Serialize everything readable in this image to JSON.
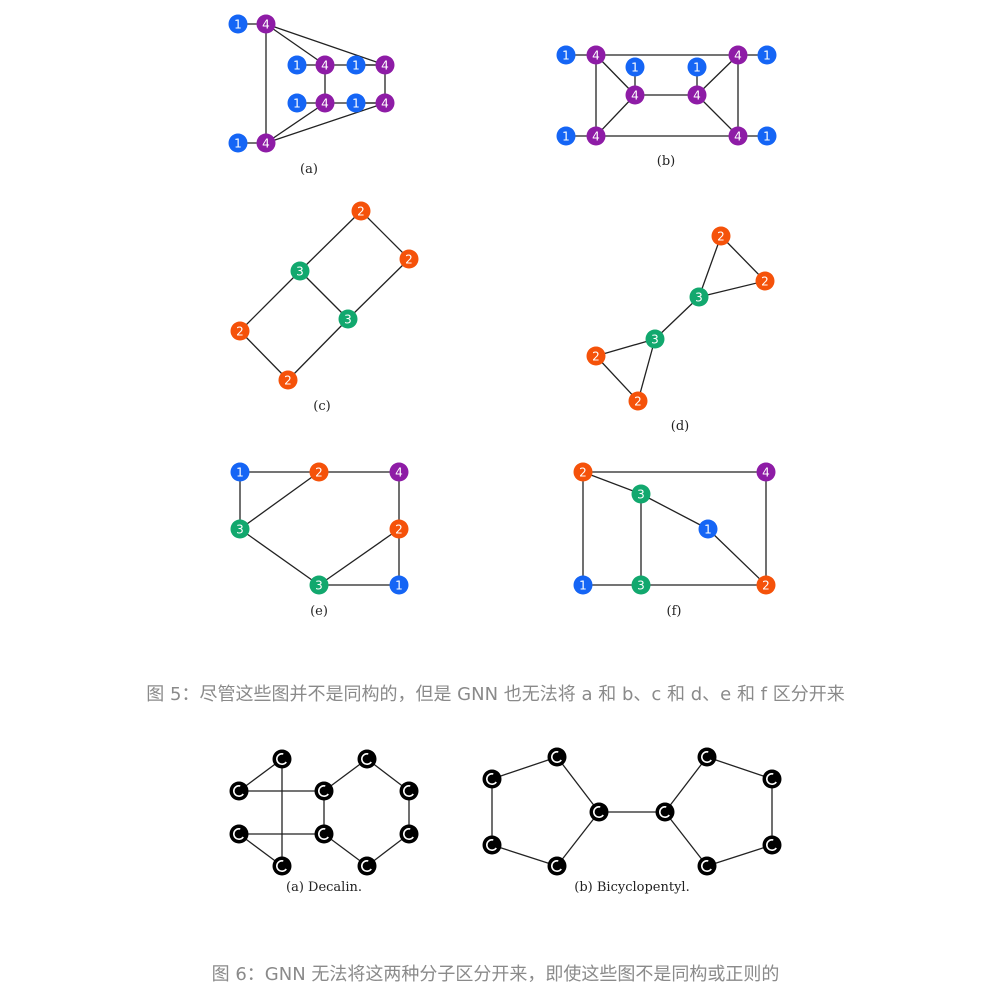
{
  "colors": {
    "1": "#1565f5",
    "2": "#f5520a",
    "3": "#12a86e",
    "4": "#8e1ca6",
    "C": "#000000"
  },
  "figure5": {
    "caption": "图 5：尽管这些图并不是同构的，但是 GNN 也无法将 a 和 b、c 和 d、e 和 f 区分开来",
    "graphs": [
      {
        "id": "a",
        "label": "(a)",
        "nodes": [
          {
            "id": "a1",
            "v": "1"
          },
          {
            "id": "a2",
            "v": "4"
          },
          {
            "id": "a3",
            "v": "1"
          },
          {
            "id": "a4",
            "v": "4"
          },
          {
            "id": "a5",
            "v": "1"
          },
          {
            "id": "a6",
            "v": "4"
          },
          {
            "id": "a7",
            "v": "1"
          },
          {
            "id": "a8",
            "v": "4"
          },
          {
            "id": "a9",
            "v": "1"
          },
          {
            "id": "a10",
            "v": "4"
          },
          {
            "id": "a11",
            "v": "1"
          },
          {
            "id": "a12",
            "v": "4"
          }
        ],
        "edges": [
          [
            "a1",
            "a2"
          ],
          [
            "a3",
            "a4"
          ],
          [
            "a5",
            "a6"
          ],
          [
            "a7",
            "a8"
          ],
          [
            "a9",
            "a10"
          ],
          [
            "a11",
            "a12"
          ],
          [
            "a2",
            "a4"
          ],
          [
            "a2",
            "a6"
          ],
          [
            "a2",
            "a12"
          ],
          [
            "a4",
            "a6"
          ],
          [
            "a4",
            "a10"
          ],
          [
            "a6",
            "a8"
          ],
          [
            "a8",
            "a10"
          ],
          [
            "a8",
            "a12"
          ],
          [
            "a10",
            "a12"
          ]
        ]
      },
      {
        "id": "b",
        "label": "(b)",
        "nodes": [
          {
            "id": "b1",
            "v": "1"
          },
          {
            "id": "b2",
            "v": "4"
          },
          {
            "id": "b3",
            "v": "1"
          },
          {
            "id": "b4",
            "v": "4"
          },
          {
            "id": "b5",
            "v": "1"
          },
          {
            "id": "b6",
            "v": "4"
          },
          {
            "id": "b7",
            "v": "1"
          },
          {
            "id": "b8",
            "v": "4"
          },
          {
            "id": "b9",
            "v": "1"
          },
          {
            "id": "b10",
            "v": "4"
          },
          {
            "id": "b11",
            "v": "1"
          },
          {
            "id": "b12",
            "v": "4"
          }
        ],
        "edges": [
          [
            "b1",
            "b2"
          ],
          [
            "b3",
            "b4"
          ],
          [
            "b5",
            "b6"
          ],
          [
            "b7",
            "b8"
          ],
          [
            "b9",
            "b10"
          ],
          [
            "b11",
            "b12"
          ],
          [
            "b2",
            "b8"
          ],
          [
            "b2",
            "b4"
          ],
          [
            "b2",
            "b10"
          ],
          [
            "b8",
            "b12"
          ],
          [
            "b8",
            "b6"
          ],
          [
            "b10",
            "b4"
          ],
          [
            "b10",
            "b12"
          ],
          [
            "b12",
            "b6"
          ],
          [
            "b4",
            "b6"
          ]
        ]
      },
      {
        "id": "c",
        "label": "(c)",
        "nodes": [
          {
            "id": "c1",
            "v": "2"
          },
          {
            "id": "c2",
            "v": "2"
          },
          {
            "id": "c3",
            "v": "3"
          },
          {
            "id": "c4",
            "v": "3"
          },
          {
            "id": "c5",
            "v": "2"
          },
          {
            "id": "c6",
            "v": "2"
          }
        ],
        "edges": [
          [
            "c1",
            "c2"
          ],
          [
            "c1",
            "c3"
          ],
          [
            "c2",
            "c4"
          ],
          [
            "c3",
            "c4"
          ],
          [
            "c3",
            "c5"
          ],
          [
            "c4",
            "c6"
          ],
          [
            "c5",
            "c6"
          ]
        ]
      },
      {
        "id": "d",
        "label": "(d)",
        "nodes": [
          {
            "id": "d1",
            "v": "2"
          },
          {
            "id": "d2",
            "v": "2"
          },
          {
            "id": "d3",
            "v": "3"
          },
          {
            "id": "d4",
            "v": "3"
          },
          {
            "id": "d5",
            "v": "2"
          },
          {
            "id": "d6",
            "v": "2"
          }
        ],
        "edges": [
          [
            "d1",
            "d2"
          ],
          [
            "d1",
            "d3"
          ],
          [
            "d2",
            "d3"
          ],
          [
            "d3",
            "d4"
          ],
          [
            "d4",
            "d5"
          ],
          [
            "d4",
            "d6"
          ],
          [
            "d5",
            "d6"
          ]
        ]
      },
      {
        "id": "e",
        "label": "(e)",
        "nodes": [
          {
            "id": "e1",
            "v": "1"
          },
          {
            "id": "e2",
            "v": "2"
          },
          {
            "id": "e3",
            "v": "4"
          },
          {
            "id": "e4",
            "v": "3"
          },
          {
            "id": "e5",
            "v": "2"
          },
          {
            "id": "e6",
            "v": "3"
          },
          {
            "id": "e7",
            "v": "1"
          }
        ],
        "edges": [
          [
            "e1",
            "e2"
          ],
          [
            "e2",
            "e3"
          ],
          [
            "e1",
            "e4"
          ],
          [
            "e2",
            "e4"
          ],
          [
            "e3",
            "e5"
          ],
          [
            "e4",
            "e6"
          ],
          [
            "e5",
            "e6"
          ],
          [
            "e5",
            "e7"
          ],
          [
            "e6",
            "e7"
          ]
        ]
      },
      {
        "id": "f",
        "label": "(f)",
        "nodes": [
          {
            "id": "f1",
            "v": "2"
          },
          {
            "id": "f2",
            "v": "4"
          },
          {
            "id": "f3",
            "v": "3"
          },
          {
            "id": "f4",
            "v": "1"
          },
          {
            "id": "f5",
            "v": "1"
          },
          {
            "id": "f6",
            "v": "3"
          },
          {
            "id": "f7",
            "v": "2"
          }
        ],
        "edges": [
          [
            "f1",
            "f2"
          ],
          [
            "f1",
            "f3"
          ],
          [
            "f1",
            "f5"
          ],
          [
            "f3",
            "f4"
          ],
          [
            "f3",
            "f6"
          ],
          [
            "f4",
            "f7"
          ],
          [
            "f2",
            "f7"
          ],
          [
            "f5",
            "f6"
          ],
          [
            "f6",
            "f7"
          ]
        ]
      }
    ]
  },
  "figure6": {
    "caption": "图 6：GNN 无法将这两种分子区分开来，即使这些图不是同构或正则的",
    "molecules": [
      {
        "id": "decalin",
        "label": "(a) Decalin.",
        "atom": "C",
        "nodes": [
          "m1",
          "m2",
          "m3",
          "m4",
          "m5",
          "m6",
          "m7",
          "m8",
          "m9",
          "m10"
        ],
        "edges": [
          [
            "m1",
            "m2"
          ],
          [
            "m2",
            "m3"
          ],
          [
            "m3",
            "m4"
          ],
          [
            "m4",
            "m5"
          ],
          [
            "m5",
            "m6"
          ],
          [
            "m6",
            "m1"
          ],
          [
            "m2",
            "m7"
          ],
          [
            "m7",
            "m8"
          ],
          [
            "m8",
            "m9"
          ],
          [
            "m9",
            "m10"
          ],
          [
            "m10",
            "m3"
          ]
        ]
      },
      {
        "id": "bicyclopentyl",
        "label": "(b) Bicyclopentyl.",
        "atom": "C",
        "nodes": [
          "n1",
          "n2",
          "n3",
          "n4",
          "n5",
          "n6",
          "n7",
          "n8",
          "n9",
          "n10"
        ],
        "edges": [
          [
            "n1",
            "n2"
          ],
          [
            "n2",
            "n3"
          ],
          [
            "n3",
            "n4"
          ],
          [
            "n4",
            "n5"
          ],
          [
            "n5",
            "n1"
          ],
          [
            "n3",
            "n6"
          ],
          [
            "n6",
            "n7"
          ],
          [
            "n7",
            "n8"
          ],
          [
            "n8",
            "n9"
          ],
          [
            "n9",
            "n10"
          ],
          [
            "n10",
            "n6"
          ]
        ]
      }
    ]
  }
}
